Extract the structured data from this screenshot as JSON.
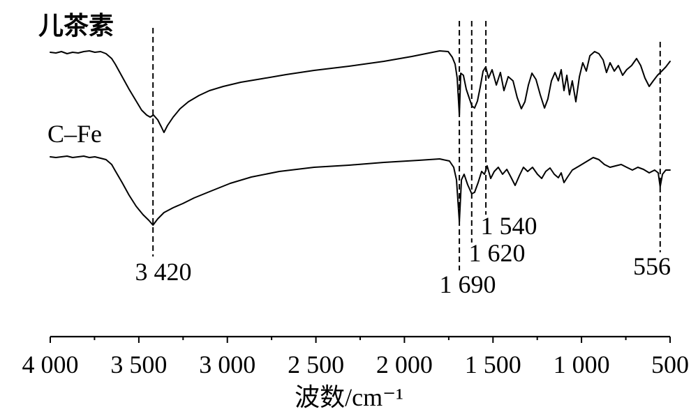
{
  "chart_data": {
    "type": "line",
    "xlabel": "波数/cm⁻¹",
    "xlim": [
      4000,
      500
    ],
    "xticks": [
      4000,
      3500,
      3000,
      2500,
      2000,
      1500,
      1000,
      500
    ],
    "xtick_labels": [
      "4 000",
      "3 500",
      "3 000",
      "2 500",
      "2 000",
      "1 500",
      "1 000",
      "500"
    ],
    "yaxis_visible": false,
    "grid": false,
    "series": [
      {
        "name": "儿茶素",
        "x": [
          4000,
          3968,
          3937,
          3905,
          3874,
          3842,
          3811,
          3779,
          3748,
          3716,
          3685,
          3653,
          3633,
          3594,
          3555,
          3515,
          3484,
          3456,
          3436,
          3417,
          3393,
          3373,
          3358,
          3338,
          3306,
          3267,
          3220,
          3160,
          3101,
          3023,
          2924,
          2806,
          2668,
          2510,
          2313,
          2116,
          1958,
          1860,
          1801,
          1753,
          1730,
          1714,
          1702,
          1690,
          1682,
          1667,
          1651,
          1635,
          1619,
          1604,
          1588,
          1572,
          1556,
          1541,
          1525,
          1505,
          1481,
          1458,
          1438,
          1414,
          1387,
          1363,
          1340,
          1320,
          1300,
          1280,
          1257,
          1233,
          1209,
          1190,
          1170,
          1150,
          1131,
          1115,
          1099,
          1083,
          1068,
          1052,
          1032,
          1012,
          993,
          973,
          953,
          926,
          902,
          878,
          859,
          839,
          815,
          792,
          768,
          745,
          717,
          689,
          666,
          642,
          618,
          595,
          571,
          547,
          524,
          500
        ],
        "y": [
          98.5,
          98,
          99,
          97.5,
          98.5,
          98,
          99,
          99.5,
          98.5,
          99,
          97.5,
          94,
          90,
          81,
          72,
          63.5,
          57,
          53.5,
          52,
          53.5,
          50,
          45,
          41,
          46,
          52,
          58,
          63,
          67.5,
          71,
          74,
          77,
          79.5,
          82.5,
          85.5,
          88.5,
          92,
          95.5,
          98,
          99.5,
          99,
          95,
          90,
          80,
          53.5,
          83.5,
          82,
          72,
          66,
          60,
          58.5,
          63.5,
          73.5,
          85,
          88,
          80,
          86,
          75,
          84,
          71,
          81,
          78,
          66,
          58,
          63,
          75,
          83.5,
          79,
          68,
          58.5,
          65,
          78,
          84,
          78,
          86,
          71,
          82,
          68,
          78,
          63,
          81,
          91,
          85,
          96,
          99,
          97.5,
          93,
          84,
          91,
          85,
          89,
          82,
          86,
          89,
          94,
          89,
          80,
          74,
          78,
          82,
          85,
          88,
          92
        ]
      },
      {
        "name": "C–Fe",
        "x": [
          4000,
          3968,
          3937,
          3905,
          3874,
          3842,
          3811,
          3779,
          3748,
          3716,
          3685,
          3653,
          3633,
          3594,
          3555,
          3515,
          3476,
          3444,
          3420,
          3393,
          3358,
          3306,
          3251,
          3188,
          3101,
          2983,
          2865,
          2707,
          2510,
          2313,
          2116,
          1919,
          1801,
          1746,
          1722,
          1706,
          1690,
          1678,
          1663,
          1643,
          1620,
          1604,
          1584,
          1564,
          1548,
          1533,
          1513,
          1493,
          1470,
          1446,
          1422,
          1399,
          1375,
          1351,
          1328,
          1304,
          1277,
          1249,
          1225,
          1202,
          1178,
          1154,
          1131,
          1115,
          1099,
          1079,
          1052,
          1012,
          973,
          934,
          902,
          871,
          839,
          808,
          776,
          745,
          713,
          682,
          650,
          618,
          587,
          567,
          556,
          543,
          524,
          500
        ],
        "y": [
          98.5,
          98,
          98.5,
          99,
          98,
          98.5,
          99,
          98,
          98.5,
          97.5,
          96.5,
          93,
          88.5,
          80,
          71,
          63,
          57,
          53,
          49.5,
          54,
          58.5,
          62,
          65,
          69,
          73.5,
          79.5,
          84,
          88,
          91,
          92.5,
          94.5,
          96,
          97,
          95.5,
          91,
          82,
          52,
          82,
          86,
          78.5,
          72,
          73,
          80,
          88,
          86,
          92,
          83,
          88,
          91,
          86,
          89.5,
          84,
          78,
          85,
          91,
          88,
          91,
          86,
          83,
          88,
          90.5,
          86,
          83.5,
          87,
          80,
          84,
          89,
          92,
          95,
          98,
          96.5,
          93,
          91,
          92,
          93,
          91,
          89,
          91,
          89.5,
          87,
          89,
          87,
          77,
          86,
          89,
          89
        ]
      }
    ],
    "annotations": [
      {
        "x": 3420,
        "label": "3 420"
      },
      {
        "x": 1690,
        "label": "1 690"
      },
      {
        "x": 1620,
        "label": "1 620"
      },
      {
        "x": 1540,
        "label": "1 540"
      },
      {
        "x": 556,
        "label": "556"
      }
    ]
  }
}
